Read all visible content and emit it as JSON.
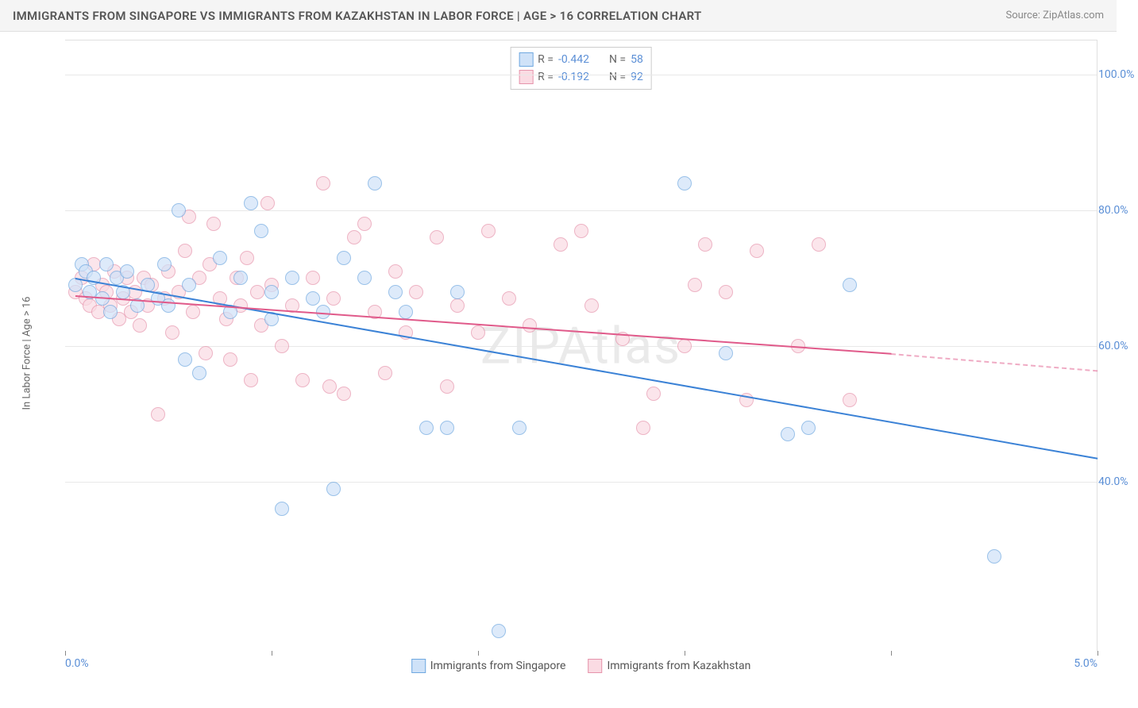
{
  "title": "IMMIGRANTS FROM SINGAPORE VS IMMIGRANTS FROM KAZAKHSTAN IN LABOR FORCE | AGE > 16 CORRELATION CHART",
  "source": "Source: ZipAtlas.com",
  "watermark": "ZIPAtlas",
  "y_axis_title": "In Labor Force | Age > 16",
  "chart": {
    "type": "scatter",
    "background_color": "#ffffff",
    "grid_color": "#e8e8e8",
    "xlim": [
      0,
      5
    ],
    "ylim": [
      15,
      105
    ],
    "x_ticks": [
      0,
      1,
      2,
      3,
      4,
      5
    ],
    "x_tick_labels": {
      "0": "0.0%",
      "5": "5.0%"
    },
    "x_tick_label_color": "#5b8fd6",
    "y_ticks": [
      40,
      60,
      80,
      100
    ],
    "y_tick_labels": {
      "40": "40.0%",
      "60": "60.0%",
      "80": "80.0%",
      "100": "100.0%"
    },
    "y_tick_label_color": "#5b8fd6",
    "label_fontsize": 14,
    "marker_radius": 9,
    "marker_opacity": 0.7,
    "series": [
      {
        "name": "Immigrants from Singapore",
        "fill_color": "#cfe2f8",
        "stroke_color": "#6fa8e0",
        "trend_color": "#3b82d6",
        "trend": {
          "x1": 0.05,
          "y1": 70,
          "x2": 5.0,
          "y2": 43.5
        },
        "R": "-0.442",
        "N": "58",
        "points": [
          [
            0.05,
            69
          ],
          [
            0.08,
            72
          ],
          [
            0.1,
            71
          ],
          [
            0.12,
            68
          ],
          [
            0.14,
            70
          ],
          [
            0.18,
            67
          ],
          [
            0.2,
            72
          ],
          [
            0.22,
            65
          ],
          [
            0.25,
            70
          ],
          [
            0.28,
            68
          ],
          [
            0.3,
            71
          ],
          [
            0.35,
            66
          ],
          [
            0.4,
            69
          ],
          [
            0.45,
            67
          ],
          [
            0.48,
            72
          ],
          [
            0.5,
            66
          ],
          [
            0.55,
            80
          ],
          [
            0.58,
            58
          ],
          [
            0.6,
            69
          ],
          [
            0.65,
            56
          ],
          [
            0.75,
            73
          ],
          [
            0.8,
            65
          ],
          [
            0.85,
            70
          ],
          [
            0.9,
            81
          ],
          [
            0.95,
            77
          ],
          [
            1.0,
            68
          ],
          [
            1.0,
            64
          ],
          [
            1.05,
            36
          ],
          [
            1.1,
            70
          ],
          [
            1.2,
            67
          ],
          [
            1.25,
            65
          ],
          [
            1.3,
            39
          ],
          [
            1.35,
            73
          ],
          [
            1.45,
            70
          ],
          [
            1.5,
            84
          ],
          [
            1.6,
            68
          ],
          [
            1.65,
            65
          ],
          [
            1.75,
            48
          ],
          [
            1.85,
            48
          ],
          [
            1.9,
            68
          ],
          [
            2.1,
            18
          ],
          [
            2.2,
            48
          ],
          [
            3.0,
            84
          ],
          [
            3.2,
            59
          ],
          [
            3.5,
            47
          ],
          [
            3.6,
            48
          ],
          [
            3.8,
            69
          ],
          [
            4.5,
            29
          ]
        ]
      },
      {
        "name": "Immigrants from Kazakhstan",
        "fill_color": "#fadbe3",
        "stroke_color": "#e694ac",
        "trend_color": "#e05a8a",
        "trend": {
          "x1": 0.05,
          "y1": 67.5,
          "x2": 4.0,
          "y2": 59
        },
        "trend_dash": {
          "x1": 4.0,
          "y1": 59,
          "x2": 5.0,
          "y2": 56.5
        },
        "R": "-0.192",
        "N": "92",
        "points": [
          [
            0.05,
            68
          ],
          [
            0.08,
            70
          ],
          [
            0.1,
            67
          ],
          [
            0.12,
            66
          ],
          [
            0.14,
            72
          ],
          [
            0.16,
            65
          ],
          [
            0.18,
            69
          ],
          [
            0.2,
            68
          ],
          [
            0.22,
            66
          ],
          [
            0.24,
            71
          ],
          [
            0.26,
            64
          ],
          [
            0.28,
            67
          ],
          [
            0.3,
            70
          ],
          [
            0.32,
            65
          ],
          [
            0.34,
            68
          ],
          [
            0.36,
            63
          ],
          [
            0.38,
            70
          ],
          [
            0.4,
            66
          ],
          [
            0.42,
            69
          ],
          [
            0.45,
            50
          ],
          [
            0.48,
            67
          ],
          [
            0.5,
            71
          ],
          [
            0.52,
            62
          ],
          [
            0.55,
            68
          ],
          [
            0.58,
            74
          ],
          [
            0.6,
            79
          ],
          [
            0.62,
            65
          ],
          [
            0.65,
            70
          ],
          [
            0.68,
            59
          ],
          [
            0.7,
            72
          ],
          [
            0.72,
            78
          ],
          [
            0.75,
            67
          ],
          [
            0.78,
            64
          ],
          [
            0.8,
            58
          ],
          [
            0.83,
            70
          ],
          [
            0.85,
            66
          ],
          [
            0.88,
            73
          ],
          [
            0.9,
            55
          ],
          [
            0.93,
            68
          ],
          [
            0.95,
            63
          ],
          [
            0.98,
            81
          ],
          [
            1.0,
            69
          ],
          [
            1.05,
            60
          ],
          [
            1.1,
            66
          ],
          [
            1.15,
            55
          ],
          [
            1.2,
            70
          ],
          [
            1.25,
            84
          ],
          [
            1.28,
            54
          ],
          [
            1.3,
            67
          ],
          [
            1.35,
            53
          ],
          [
            1.4,
            76
          ],
          [
            1.45,
            78
          ],
          [
            1.5,
            65
          ],
          [
            1.55,
            56
          ],
          [
            1.6,
            71
          ],
          [
            1.65,
            62
          ],
          [
            1.7,
            68
          ],
          [
            1.8,
            76
          ],
          [
            1.85,
            54
          ],
          [
            1.9,
            66
          ],
          [
            2.0,
            62
          ],
          [
            2.05,
            77
          ],
          [
            2.15,
            67
          ],
          [
            2.25,
            63
          ],
          [
            2.4,
            75
          ],
          [
            2.5,
            77
          ],
          [
            2.55,
            66
          ],
          [
            2.7,
            61
          ],
          [
            2.8,
            48
          ],
          [
            2.85,
            53
          ],
          [
            3.0,
            60
          ],
          [
            3.05,
            69
          ],
          [
            3.1,
            75
          ],
          [
            3.2,
            68
          ],
          [
            3.3,
            52
          ],
          [
            3.35,
            74
          ],
          [
            3.55,
            60
          ],
          [
            3.65,
            75
          ],
          [
            3.8,
            52
          ]
        ]
      }
    ]
  },
  "stats_box": {
    "label_R": "R =",
    "label_N": "N =",
    "value_color": "#5b8fd6",
    "text_color": "#666"
  }
}
